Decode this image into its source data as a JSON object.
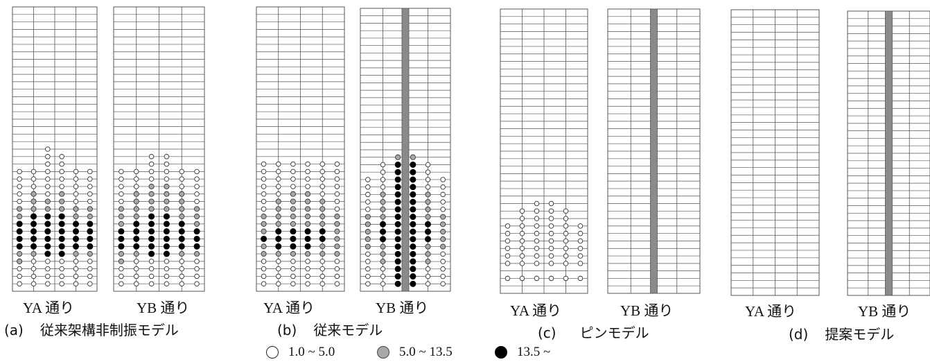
{
  "panels": [
    {
      "key": "(a)",
      "caption": "従来架構非制振モデル",
      "frames": [
        {
          "label": "YA 通り",
          "damper": false,
          "hinge_rows": [
            "000000",
            "000000",
            "000000",
            "000000",
            "000000",
            "000000",
            "000000",
            "000000",
            "000000",
            "000000",
            "000000",
            "000000",
            "000000",
            "000000",
            "000000",
            "000000",
            "000000",
            "000000",
            "001000",
            "001100",
            "001100",
            "111111",
            "111111",
            "111111",
            "121211",
            "122211",
            "222222",
            "233322",
            "333333",
            "333333",
            "333333",
            "333333",
            "223322",
            "211111",
            "111111",
            "111111",
            "111111",
            "111111"
          ]
        },
        {
          "label": "YB 通り",
          "damper": false,
          "hinge_rows": [
            "000000",
            "000000",
            "000000",
            "000000",
            "000000",
            "000000",
            "000000",
            "000000",
            "000000",
            "000000",
            "000000",
            "000000",
            "000000",
            "000000",
            "000000",
            "000000",
            "000000",
            "000000",
            "000000",
            "001100",
            "001100",
            "111111",
            "111111",
            "112211",
            "122221",
            "122221",
            "222222",
            "223322",
            "233332",
            "333333",
            "333333",
            "333333",
            "223322",
            "211111",
            "111111",
            "111111",
            "111111",
            "111111"
          ]
        }
      ]
    },
    {
      "key": "(b)",
      "caption": "従来モデル",
      "frames": [
        {
          "label": "YA 通り",
          "damper": false,
          "hinge_rows": [
            "000000",
            "000000",
            "000000",
            "000000",
            "000000",
            "000000",
            "000000",
            "000000",
            "000000",
            "000000",
            "000000",
            "000000",
            "000000",
            "000000",
            "000000",
            "000000",
            "000000",
            "000000",
            "000000",
            "000000",
            "111111",
            "111111",
            "111111",
            "111111",
            "112211",
            "122221",
            "122221",
            "222222",
            "222222",
            "233332",
            "333332",
            "233322",
            "222222",
            "111111",
            "111111",
            "111111",
            "111111",
            "111111"
          ]
        },
        {
          "label": "YB 通り",
          "damper": true,
          "hinge_rows": [
            "000000",
            "000000",
            "000000",
            "000000",
            "000000",
            "000000",
            "000000",
            "000000",
            "000000",
            "000000",
            "000000",
            "000000",
            "000000",
            "000000",
            "000000",
            "000000",
            "000000",
            "000000",
            "000000",
            "002200",
            "013310",
            "013310",
            "113311",
            "113311",
            "123321",
            "123321",
            "123321",
            "223322",
            "233332",
            "233332",
            "233332",
            "223322",
            "123321",
            "123321",
            "113311",
            "113311",
            "113311",
            "013310"
          ]
        }
      ]
    },
    {
      "key": "(c)",
      "caption": "ピンモデル",
      "frames": [
        {
          "label": "YA 通り",
          "damper": false,
          "hinge_rows": [
            "000000",
            "000000",
            "000000",
            "000000",
            "000000",
            "000000",
            "000000",
            "000000",
            "000000",
            "000000",
            "000000",
            "000000",
            "000000",
            "000000",
            "000000",
            "000000",
            "000000",
            "000000",
            "000000",
            "000000",
            "000000",
            "000000",
            "000000",
            "000000",
            "000000",
            "001100",
            "011110",
            "011110",
            "111111",
            "111111",
            "111111",
            "111111",
            "111111",
            "111111",
            "000000",
            "111111",
            "000000",
            "000000"
          ]
        },
        {
          "label": "YB 通り",
          "damper": true,
          "hinge_rows": [
            "000000",
            "000000",
            "000000",
            "000000",
            "000000",
            "000000",
            "000000",
            "000000",
            "000000",
            "000000",
            "000000",
            "000000",
            "000000",
            "000000",
            "000000",
            "000000",
            "000000",
            "000000",
            "000000",
            "000000",
            "000000",
            "000000",
            "000000",
            "000000",
            "000000",
            "000000",
            "000000",
            "000000",
            "000000",
            "000000",
            "000000",
            "000000",
            "000000",
            "000000",
            "000000",
            "000000",
            "000000",
            "000000"
          ]
        }
      ]
    },
    {
      "key": "(d)",
      "caption": "提案モデル",
      "frames": [
        {
          "label": "YA 通り",
          "damper": false,
          "hinge_rows": [
            "000000",
            "000000",
            "000000",
            "000000",
            "000000",
            "000000",
            "000000",
            "000000",
            "000000",
            "000000",
            "000000",
            "000000",
            "000000",
            "000000",
            "000000",
            "000000",
            "000000",
            "000000",
            "000000",
            "000000",
            "000000",
            "000000",
            "000000",
            "000000",
            "000000",
            "000000",
            "000000",
            "000000",
            "000000",
            "000000",
            "000000",
            "000000",
            "000000",
            "000000",
            "000000",
            "000000",
            "000000",
            "000000"
          ]
        },
        {
          "label": "YB 通り",
          "damper": true,
          "hinge_rows": [
            "000000",
            "000000",
            "000000",
            "000000",
            "000000",
            "000000",
            "000000",
            "000000",
            "000000",
            "000000",
            "000000",
            "000000",
            "000000",
            "000000",
            "000000",
            "000000",
            "000000",
            "000000",
            "000000",
            "000000",
            "000000",
            "000000",
            "000000",
            "000000",
            "000000",
            "000000",
            "000000",
            "000000",
            "000000",
            "000000",
            "000000",
            "000000",
            "000000",
            "000000",
            "000000",
            "000000",
            "000000",
            "000000"
          ]
        }
      ]
    }
  ],
  "legend": [
    {
      "range": "1.0 ~ 5.0",
      "level": 1
    },
    {
      "range": "5.0 ~ 13.5",
      "level": 2
    },
    {
      "range": "13.5 ~",
      "level": 3
    }
  ],
  "colors": {
    "grid": "#555555",
    "damper": "#8a8a8a",
    "hinge_small_fill": "#ffffff",
    "hinge_mid_fill": "#a8a8a8",
    "hinge_large_fill": "#000000",
    "text": "#111111"
  }
}
